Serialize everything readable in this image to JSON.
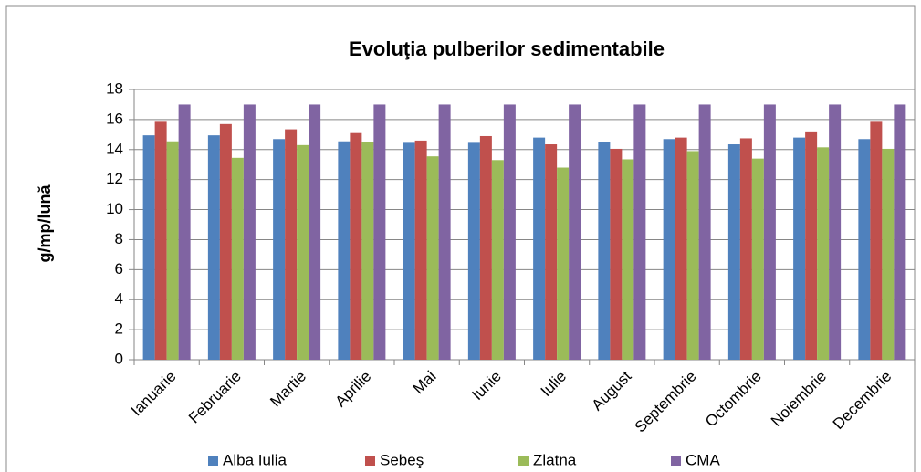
{
  "chart_data": {
    "type": "bar",
    "title": "Evoluţia pulberilor sedimentabile",
    "y_label": "g/mp/lună",
    "categories": [
      "Ianuarie",
      "Februarie",
      "Martie",
      "Aprilie",
      "Mai",
      "Iunie",
      "Iulie",
      "August",
      "Septembrie",
      "Octombrie",
      "Noiembrie",
      "Decembrie"
    ],
    "series": [
      {
        "name": "Alba Iulia",
        "color": "#4f81bd",
        "values": [
          14.95,
          14.95,
          14.7,
          14.55,
          14.45,
          14.45,
          14.8,
          14.5,
          14.7,
          14.35,
          14.8,
          14.7
        ]
      },
      {
        "name": "Sebeş",
        "color": "#c0504d",
        "values": [
          15.85,
          15.7,
          15.35,
          15.1,
          14.6,
          14.9,
          14.35,
          14.05,
          14.8,
          14.75,
          15.15,
          15.85
        ]
      },
      {
        "name": "Zlatna",
        "color": "#9bbb59",
        "values": [
          14.55,
          13.45,
          14.3,
          14.5,
          13.55,
          13.3,
          12.8,
          13.35,
          13.9,
          13.4,
          14.15,
          14.05
        ]
      },
      {
        "name": "CMA",
        "color": "#8064a2",
        "values": [
          17,
          17,
          17,
          17,
          17,
          17,
          17,
          17,
          17,
          17,
          17,
          17
        ]
      }
    ],
    "ylim": [
      0,
      18
    ],
    "yticks": [
      0,
      2,
      4,
      6,
      8,
      10,
      12,
      14,
      16,
      18
    ],
    "grid": true,
    "legend": "bottom"
  }
}
